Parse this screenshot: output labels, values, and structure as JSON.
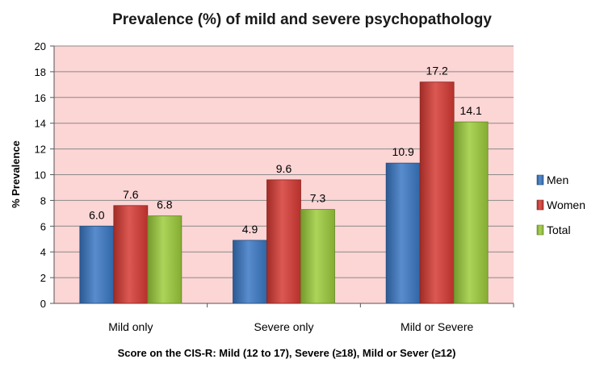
{
  "chart_data": {
    "type": "bar",
    "title": "Prevalence (%) of mild and severe psychopathology",
    "xlabel": "Score on the CIS-R: Mild (12 to 17), Severe (≥18), Mild or Sever (≥12)",
    "ylabel": "% Prevalence",
    "ylim": [
      0,
      20
    ],
    "yticks": [
      0,
      2,
      4,
      6,
      8,
      10,
      12,
      14,
      16,
      18,
      20
    ],
    "categories": [
      "Mild only",
      "Severe only",
      "Mild or Severe"
    ],
    "series": [
      {
        "name": "Men",
        "values": [
          6.0,
          4.9,
          10.9
        ],
        "labels": [
          "6.0",
          "4.9",
          "10.9"
        ],
        "color": "#3a78c4"
      },
      {
        "name": "Women",
        "values": [
          7.6,
          9.6,
          17.2
        ],
        "labels": [
          "7.6",
          "9.6",
          "17.2"
        ],
        "color": "#d63a34"
      },
      {
        "name": "Total",
        "values": [
          6.8,
          7.3,
          14.1
        ],
        "labels": [
          "6.8",
          "7.3",
          "14.1"
        ],
        "color": "#9ccc3c"
      }
    ],
    "plot_background": "#fcd5d5",
    "grid": true,
    "legend_position": "right"
  }
}
